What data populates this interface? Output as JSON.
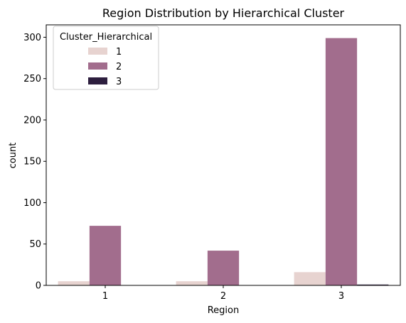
{
  "chart_data": {
    "type": "bar",
    "title": "Region Distribution by Hierarchical Cluster",
    "xlabel": "Region",
    "ylabel": "count",
    "categories": [
      "1",
      "2",
      "3"
    ],
    "series": [
      {
        "name": "1",
        "values": [
          5,
          5,
          16
        ],
        "color": "#e7d3d0"
      },
      {
        "name": "2",
        "values": [
          72,
          42,
          299
        ],
        "color": "#a26d8d"
      },
      {
        "name": "3",
        "values": [
          0,
          0,
          1
        ],
        "color": "#2d1e3e"
      }
    ],
    "ylim": [
      0,
      315
    ],
    "yticks": [
      0,
      50,
      100,
      150,
      200,
      250,
      300
    ],
    "legend": {
      "title": "Cluster_Hierarchical",
      "placement": "top-left"
    },
    "grid": false
  }
}
